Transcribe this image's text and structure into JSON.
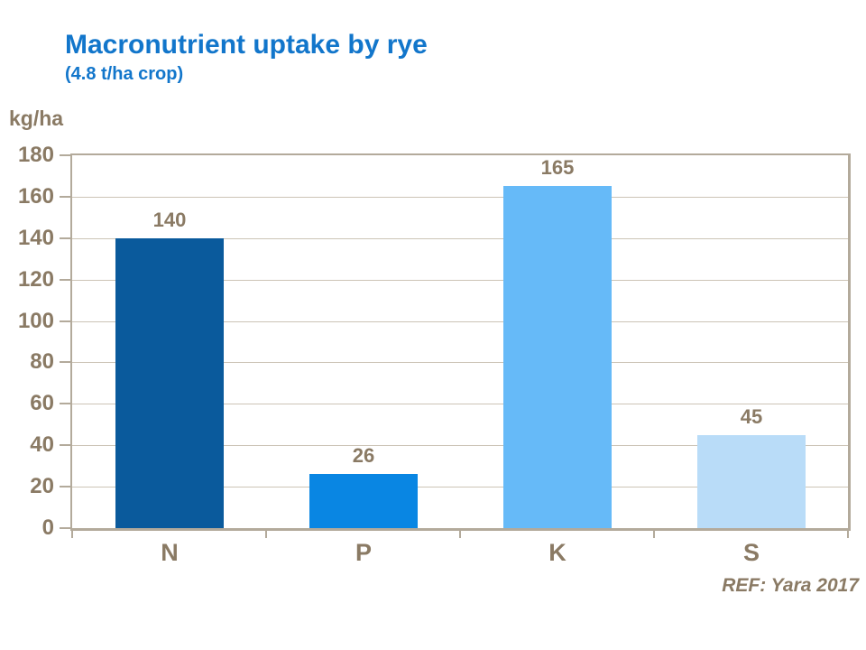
{
  "header": {
    "title": "Macronutrient uptake by rye",
    "subtitle": "(4.8 t/ha crop)"
  },
  "chart_data": {
    "type": "bar",
    "title": "Macronutrient uptake by rye",
    "subtitle": "(4.8 t/ha crop)",
    "unit_label": "kg/ha",
    "categories": [
      "N",
      "P",
      "K",
      "S"
    ],
    "values": [
      140,
      26,
      165,
      45
    ],
    "value_labels": [
      "140",
      "26",
      "165",
      "45"
    ],
    "bar_colors": [
      "#0a5a9c",
      "#0986e3",
      "#66baf8",
      "#b9dcf8"
    ],
    "ylim": [
      0,
      180
    ],
    "ytick_step": 20,
    "ytick_labels": [
      "0",
      "20",
      "40",
      "60",
      "80",
      "100",
      "120",
      "140",
      "160",
      "180"
    ],
    "grid": true,
    "legend": "none"
  },
  "footer": {
    "reference": "REF: Yara 2017"
  },
  "colors": {
    "title_blue": "#1276cb",
    "axis_text_taupe": "#8a7a64",
    "axis_line": "#b3aa9b",
    "gridline": "#ccc4b6",
    "background": "#ffffff"
  }
}
